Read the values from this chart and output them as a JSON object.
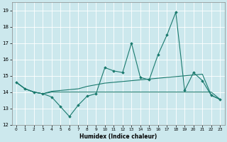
{
  "xlabel": "Humidex (Indice chaleur)",
  "xlim": [
    -0.5,
    23.5
  ],
  "ylim": [
    12,
    19.5
  ],
  "yticks": [
    12,
    13,
    14,
    15,
    16,
    17,
    18,
    19
  ],
  "xticks": [
    0,
    1,
    2,
    3,
    4,
    5,
    6,
    7,
    8,
    9,
    10,
    11,
    12,
    13,
    14,
    15,
    16,
    17,
    18,
    19,
    20,
    21,
    22,
    23
  ],
  "bg_color": "#cce8ed",
  "grid_color": "#ffffff",
  "line_color": "#1a7a6e",
  "line1_x": [
    0,
    1,
    2,
    3,
    4,
    5,
    6,
    7,
    8,
    9,
    10,
    11,
    12,
    13,
    14,
    15,
    16,
    17,
    18,
    19,
    20,
    21,
    22,
    23
  ],
  "line1_y": [
    14.6,
    14.2,
    14.0,
    13.9,
    13.7,
    13.1,
    12.5,
    13.2,
    13.75,
    13.9,
    15.5,
    15.3,
    15.2,
    17.0,
    14.9,
    14.75,
    16.3,
    17.5,
    18.9,
    14.1,
    15.2,
    14.7,
    13.8,
    13.55
  ],
  "line2_x": [
    0,
    1,
    2,
    3,
    4,
    5,
    6,
    7,
    8,
    9,
    10,
    11,
    12,
    13,
    14,
    15,
    16,
    17,
    18,
    19,
    20,
    21,
    22,
    23
  ],
  "line2_y": [
    14.6,
    14.2,
    14.0,
    13.9,
    14.0,
    14.0,
    14.0,
    14.0,
    14.0,
    14.0,
    14.0,
    14.0,
    14.0,
    14.0,
    14.0,
    14.0,
    14.0,
    14.0,
    14.0,
    14.0,
    14.0,
    14.0,
    14.0,
    13.55
  ],
  "line3_x": [
    0,
    1,
    2,
    3,
    4,
    5,
    6,
    7,
    8,
    9,
    10,
    11,
    12,
    13,
    14,
    15,
    16,
    17,
    18,
    19,
    20,
    21,
    22,
    23
  ],
  "line3_y": [
    14.6,
    14.2,
    14.0,
    13.9,
    14.05,
    14.1,
    14.15,
    14.2,
    14.35,
    14.45,
    14.55,
    14.6,
    14.65,
    14.7,
    14.75,
    14.8,
    14.85,
    14.9,
    14.95,
    15.0,
    15.05,
    15.1,
    13.8,
    13.55
  ]
}
